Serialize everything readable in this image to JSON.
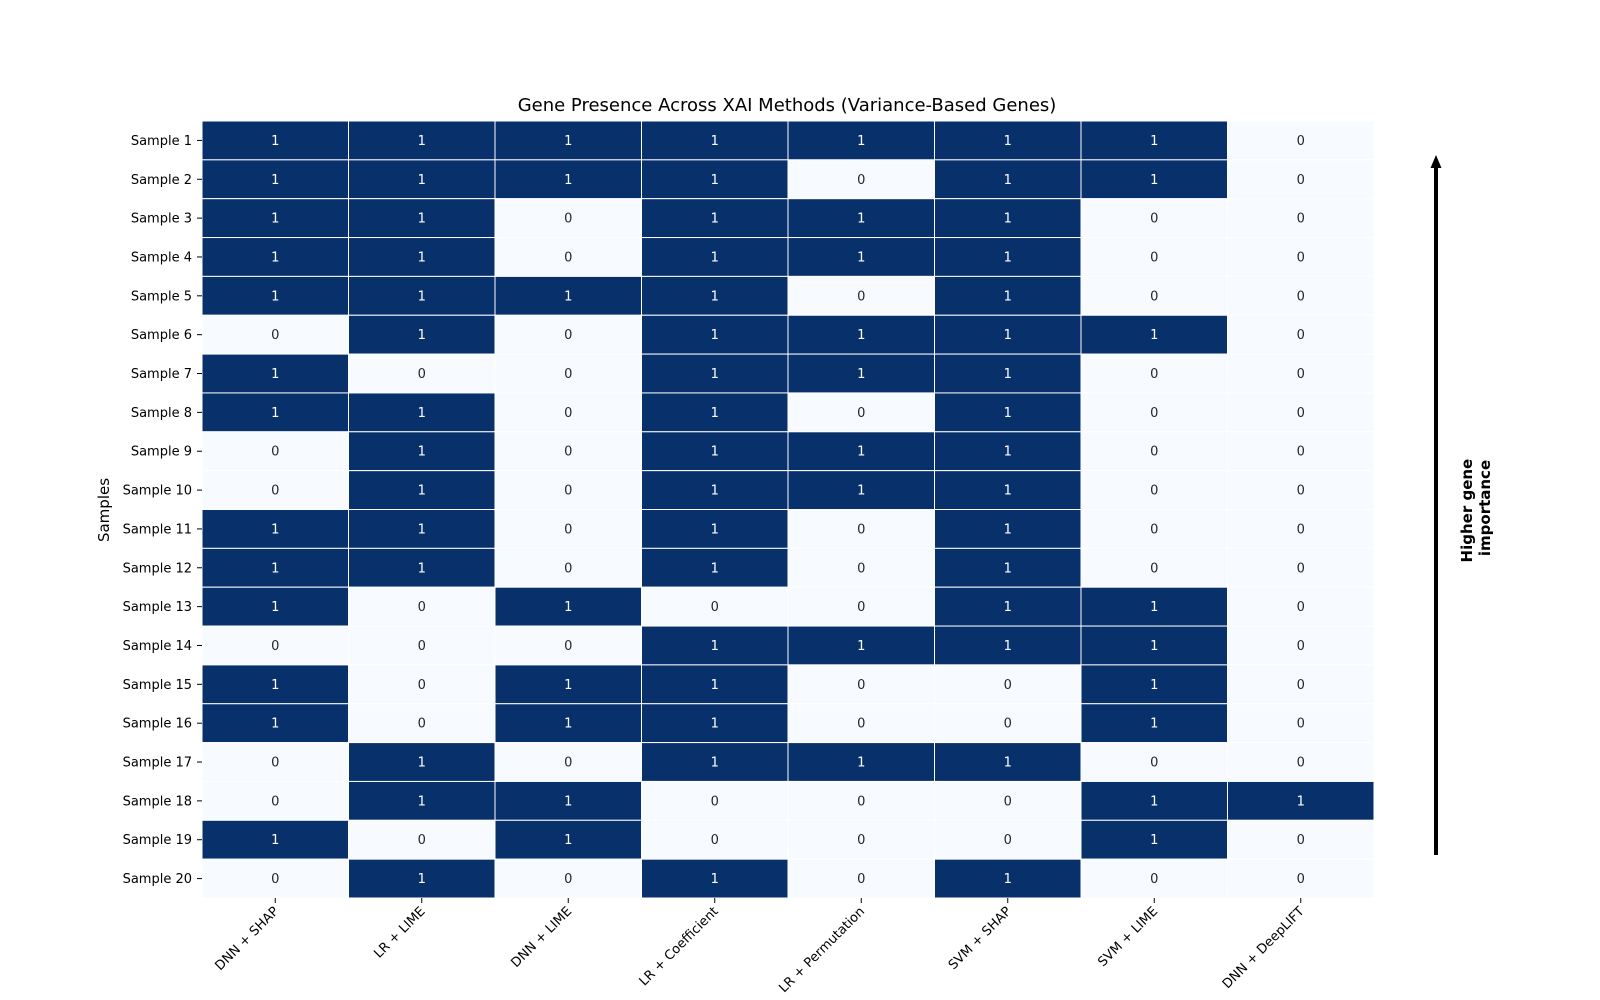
{
  "chart_data": {
    "type": "heatmap",
    "title": "Gene Presence Across XAI Methods (Variance-Based Genes)",
    "ylabel": "Samples",
    "xlabel": "",
    "side_annotation": [
      "Higher gene",
      "importance"
    ],
    "x_categories": [
      "DNN + SHAP",
      "LR + LIME",
      "DNN + LIME",
      "LR + Coefficient",
      "LR + Permutation",
      "SVM + SHAP",
      "SVM + LIME",
      "DNN + DeepLIFT"
    ],
    "y_categories": [
      "Sample 1",
      "Sample 2",
      "Sample 3",
      "Sample 4",
      "Sample 5",
      "Sample 6",
      "Sample 7",
      "Sample 8",
      "Sample 9",
      "Sample 10",
      "Sample 11",
      "Sample 12",
      "Sample 13",
      "Sample 14",
      "Sample 15",
      "Sample 16",
      "Sample 17",
      "Sample 18",
      "Sample 19",
      "Sample 20"
    ],
    "values": [
      [
        1,
        1,
        1,
        1,
        1,
        1,
        1,
        0
      ],
      [
        1,
        1,
        1,
        1,
        0,
        1,
        1,
        0
      ],
      [
        1,
        1,
        0,
        1,
        1,
        1,
        0,
        0
      ],
      [
        1,
        1,
        0,
        1,
        1,
        1,
        0,
        0
      ],
      [
        1,
        1,
        1,
        1,
        0,
        1,
        0,
        0
      ],
      [
        0,
        1,
        0,
        1,
        1,
        1,
        1,
        0
      ],
      [
        1,
        0,
        0,
        1,
        1,
        1,
        0,
        0
      ],
      [
        1,
        1,
        0,
        1,
        0,
        1,
        0,
        0
      ],
      [
        0,
        1,
        0,
        1,
        1,
        1,
        0,
        0
      ],
      [
        0,
        1,
        0,
        1,
        1,
        1,
        0,
        0
      ],
      [
        1,
        1,
        0,
        1,
        0,
        1,
        0,
        0
      ],
      [
        1,
        1,
        0,
        1,
        0,
        1,
        0,
        0
      ],
      [
        1,
        0,
        1,
        0,
        0,
        1,
        1,
        0
      ],
      [
        0,
        0,
        0,
        1,
        1,
        1,
        1,
        0
      ],
      [
        1,
        0,
        1,
        1,
        0,
        0,
        1,
        0
      ],
      [
        1,
        0,
        1,
        1,
        0,
        0,
        1,
        0
      ],
      [
        0,
        1,
        0,
        1,
        1,
        1,
        0,
        0
      ],
      [
        0,
        1,
        1,
        0,
        0,
        0,
        1,
        1
      ],
      [
        1,
        0,
        1,
        0,
        0,
        0,
        1,
        0
      ],
      [
        0,
        1,
        0,
        1,
        0,
        1,
        0,
        0
      ]
    ],
    "colors": {
      "present": "#08306b",
      "absent": "#f7fbff",
      "text_on_present": "#ffffff",
      "text_on_absent": "#262626"
    },
    "grid": false,
    "legend": "none"
  }
}
